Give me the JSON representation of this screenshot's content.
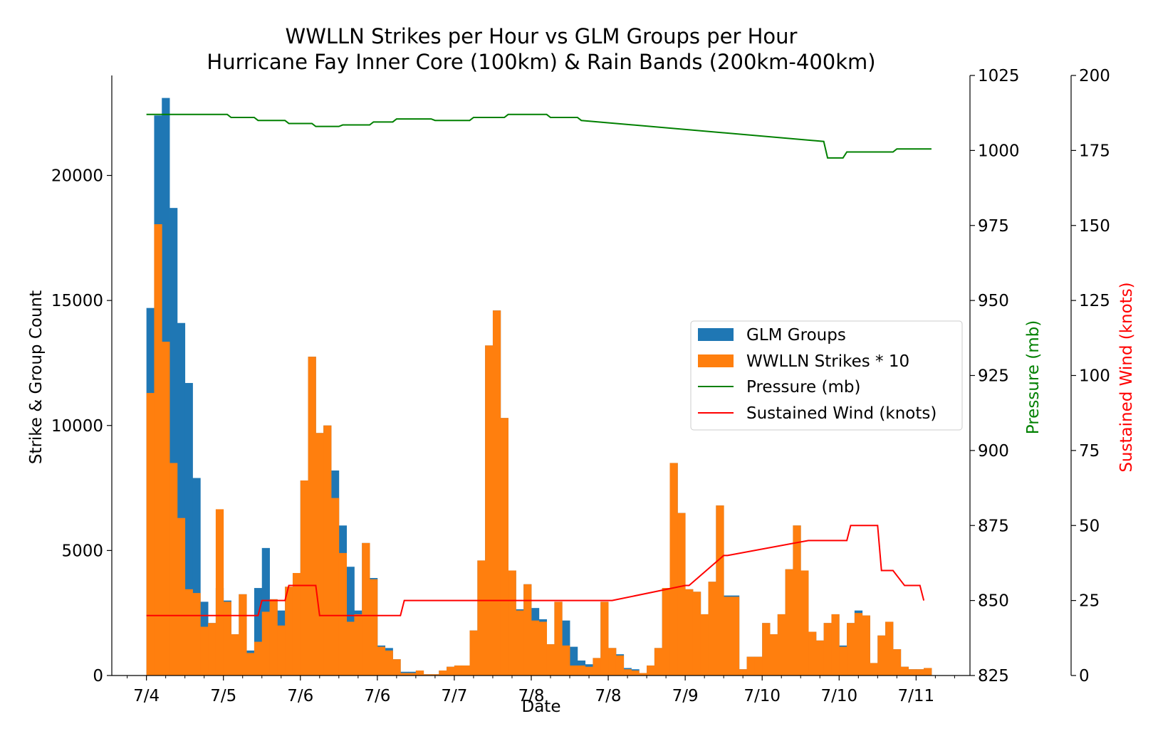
{
  "chart_data": {
    "type": "bar",
    "title": "WWLLN Strikes per Hour vs GLM Groups per Hour",
    "subtitle": "Hurricane Fay Inner Core (100km) & Rain Bands (200km-400km)",
    "xlabel": "Date",
    "ylabel": "Strike & Group Count",
    "y2label": "Pressure (mb)",
    "y3label": "Sustained Wind (knots)",
    "x_tick_labels": [
      "7/4",
      "7/5",
      "7/6",
      "7/6",
      "7/7",
      "7/8",
      "7/8",
      "7/9",
      "7/10",
      "7/10",
      "7/11"
    ],
    "ylim": [
      0,
      24000
    ],
    "y_ticks": [
      0,
      5000,
      10000,
      15000,
      20000
    ],
    "y2lim": [
      825,
      1025
    ],
    "y2_ticks": [
      825,
      850,
      875,
      900,
      925,
      950,
      975,
      1000,
      1025
    ],
    "y3lim": [
      0,
      200
    ],
    "y3_ticks": [
      0,
      25,
      50,
      75,
      100,
      125,
      150,
      175,
      200
    ],
    "legend_position": "center-right",
    "colors": {
      "glm": "#1f77b4",
      "wwlln": "#ff7f0e",
      "pressure": "#008000",
      "wind": "#ff0000"
    },
    "x_range_hours": [
      -9,
      214
    ],
    "bar_width_hours": 2,
    "series": [
      {
        "name": "GLM Groups",
        "kind": "bar",
        "color": "#1f77b4",
        "x": [
          0,
          2,
          4,
          6,
          8,
          10,
          12,
          14,
          16,
          18,
          20,
          22,
          24,
          26,
          28,
          30,
          32,
          34,
          36,
          38,
          40,
          42,
          44,
          46,
          48,
          50,
          52,
          54,
          56,
          58,
          60,
          62,
          64,
          66,
          68,
          70,
          72,
          74,
          76,
          78,
          80,
          82,
          84,
          86,
          88,
          90,
          92,
          94,
          96,
          98,
          100,
          102,
          104,
          106,
          108,
          110,
          112,
          114,
          116,
          118,
          120,
          122,
          124,
          126,
          128,
          130,
          132,
          134,
          136,
          138,
          140,
          142,
          144,
          146,
          148,
          150,
          152,
          154,
          156,
          158,
          160,
          162,
          164,
          166,
          168,
          170,
          172,
          174,
          176,
          178,
          180,
          182,
          184,
          186,
          188,
          190,
          192,
          194,
          196,
          198,
          200,
          202
        ],
        "values": [
          14700,
          22400,
          23100,
          18700,
          14100,
          11700,
          7900,
          2950,
          2100,
          3500,
          3000,
          1650,
          3250,
          1000,
          3500,
          5100,
          3050,
          2600,
          3550,
          4100,
          7800,
          12750,
          9700,
          10000,
          8200,
          6000,
          4350,
          2600,
          5300,
          3900,
          1200,
          1100,
          650,
          150,
          150,
          200,
          50,
          50,
          200,
          350,
          400,
          400,
          1800,
          4600,
          13200,
          14600,
          10300,
          4200,
          2650,
          3650,
          2700,
          2250,
          1250,
          2950,
          2200,
          1150,
          600,
          450,
          700,
          2950,
          1100,
          850,
          300,
          250,
          100,
          400,
          1100,
          3500,
          8500,
          6500,
          3450,
          3350,
          2450,
          3750,
          6800,
          3200,
          3200,
          250,
          750,
          750,
          2100,
          1650,
          2450,
          4250,
          6000,
          4200,
          1750,
          1400,
          2100,
          2450,
          1200,
          2100,
          2600,
          2400,
          500,
          1600,
          2150,
          1050,
          350,
          250,
          250,
          300
        ]
      },
      {
        "name": "WWLLN Strikes * 10",
        "kind": "bar",
        "color": "#ff7f0e",
        "x": [
          0,
          2,
          4,
          6,
          8,
          10,
          12,
          14,
          16,
          18,
          20,
          22,
          24,
          26,
          28,
          30,
          32,
          34,
          36,
          38,
          40,
          42,
          44,
          46,
          48,
          50,
          52,
          54,
          56,
          58,
          60,
          62,
          64,
          66,
          68,
          70,
          72,
          74,
          76,
          78,
          80,
          82,
          84,
          86,
          88,
          90,
          92,
          94,
          96,
          98,
          100,
          102,
          104,
          106,
          108,
          110,
          112,
          114,
          116,
          118,
          120,
          122,
          124,
          126,
          128,
          130,
          132,
          134,
          136,
          138,
          140,
          142,
          144,
          146,
          148,
          150,
          152,
          154,
          156,
          158,
          160,
          162,
          164,
          166,
          168,
          170,
          172,
          174,
          176,
          178,
          180,
          182,
          184,
          186,
          188,
          190,
          192,
          194,
          196,
          198,
          200,
          202
        ],
        "values": [
          11300,
          18050,
          13350,
          8500,
          6300,
          3450,
          3300,
          1950,
          2100,
          6650,
          2950,
          1650,
          3250,
          900,
          1350,
          2550,
          3050,
          2000,
          3550,
          4100,
          7800,
          12750,
          9700,
          10000,
          7100,
          4900,
          2150,
          2450,
          5300,
          3850,
          1150,
          1000,
          650,
          100,
          100,
          200,
          50,
          50,
          200,
          350,
          400,
          400,
          1800,
          4600,
          13200,
          14600,
          10300,
          4200,
          2600,
          3650,
          2200,
          2150,
          1250,
          2950,
          1200,
          400,
          400,
          350,
          700,
          2950,
          1100,
          800,
          250,
          200,
          100,
          400,
          1100,
          3500,
          8500,
          6500,
          3450,
          3350,
          2450,
          3750,
          6800,
          3150,
          3150,
          250,
          750,
          750,
          2100,
          1650,
          2450,
          4250,
          6000,
          4200,
          1750,
          1400,
          2100,
          2450,
          1150,
          2100,
          2500,
          2400,
          500,
          1600,
          2150,
          1050,
          350,
          250,
          250,
          300
        ]
      },
      {
        "name": "Pressure (mb)",
        "kind": "line",
        "axis": "y2",
        "color": "#008000",
        "x": [
          0,
          21,
          22,
          28,
          29,
          36,
          37,
          43,
          44,
          50,
          51,
          58,
          59,
          64,
          65,
          74,
          75,
          84,
          85,
          93,
          94,
          104,
          105,
          112,
          113,
          176,
          177,
          181,
          182,
          194,
          195,
          204
        ],
        "values": [
          1012,
          1012,
          1011,
          1011,
          1010,
          1010,
          1009,
          1009,
          1008,
          1008,
          1008.5,
          1008.5,
          1009.5,
          1009.5,
          1010.5,
          1010.5,
          1010,
          1010,
          1011,
          1011,
          1012,
          1012,
          1011,
          1011,
          1010,
          1003,
          997.5,
          997.5,
          999.5,
          999.5,
          1000.5,
          1000.5
        ]
      },
      {
        "name": "Sustained Wind (knots)",
        "kind": "line",
        "axis": "y3",
        "color": "#ff0000",
        "x": [
          0,
          29,
          30,
          36,
          37,
          44,
          45,
          56,
          57,
          60,
          61,
          66,
          67,
          118,
          119,
          120,
          121,
          140,
          141,
          150,
          151,
          172,
          173,
          182,
          183,
          190,
          191,
          193,
          194,
          197,
          198,
          201,
          202
        ],
        "values": [
          20,
          20,
          25,
          25,
          30,
          30,
          20,
          20,
          20,
          20,
          20,
          20,
          25,
          25,
          25,
          25,
          25,
          30,
          30,
          40,
          40,
          45,
          45,
          45,
          50,
          50,
          35,
          35,
          35,
          30,
          30,
          30,
          25
        ]
      }
    ]
  }
}
